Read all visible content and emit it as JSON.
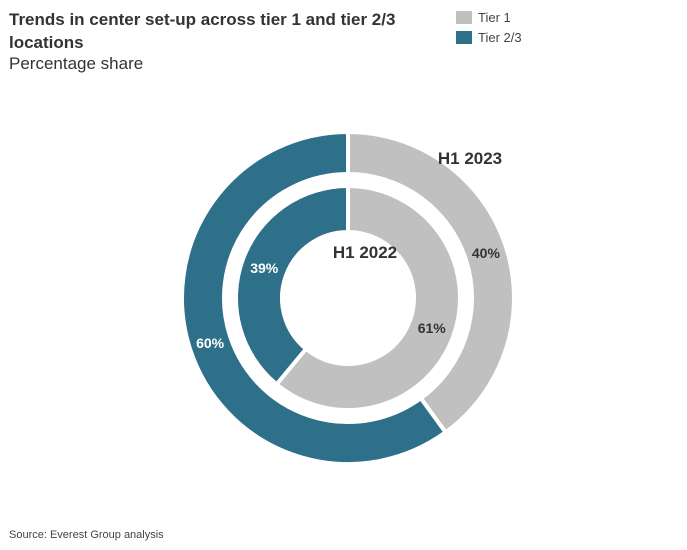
{
  "chart_data": {
    "type": "pie",
    "title": "Trends in center set-up across tier 1 and tier 2/3 locations",
    "subtitle": "Percentage share",
    "source": "Source: Everest Group analysis",
    "series": [
      {
        "name": "Tier 1",
        "color": "#c0c0c0"
      },
      {
        "name": "Tier 2/3",
        "color": "#2e7089"
      }
    ],
    "rings": [
      {
        "label": "H1 2023",
        "ring": "outer",
        "values": [
          40,
          60
        ],
        "value_labels": [
          "40%",
          "60%"
        ]
      },
      {
        "label": "H1 2022",
        "ring": "inner",
        "values": [
          61,
          39
        ],
        "value_labels": [
          "61%",
          "39%"
        ]
      }
    ]
  }
}
